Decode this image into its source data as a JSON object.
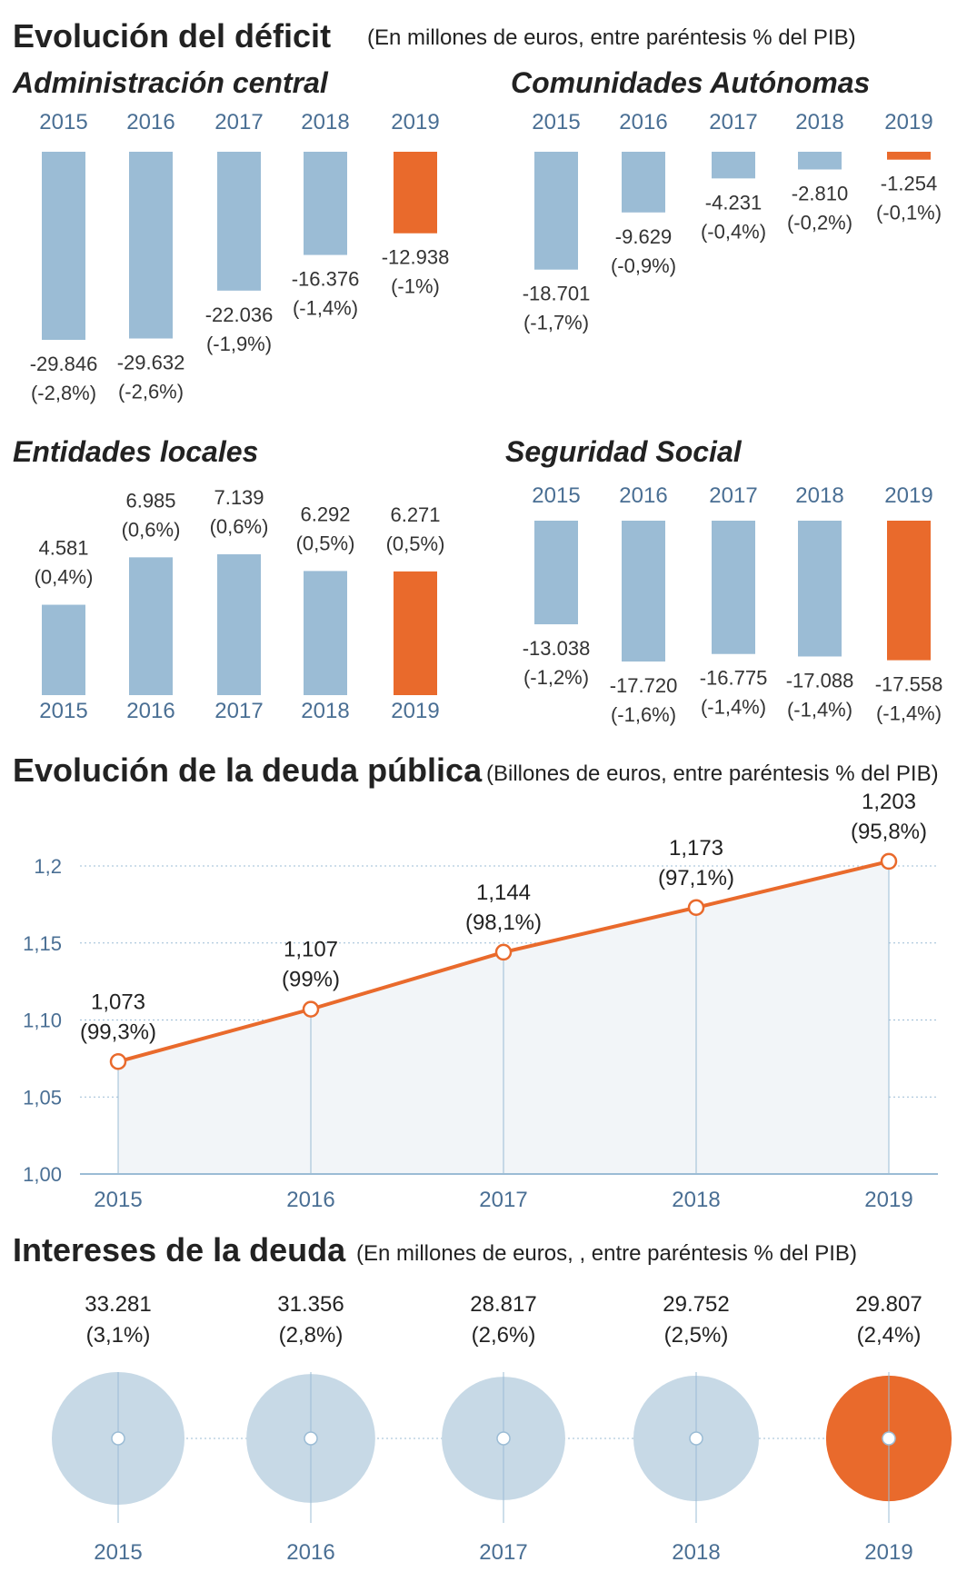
{
  "colors": {
    "bar": "#9bbcd5",
    "highlight": "#e96a2c",
    "circle": "#c7d9e6",
    "line": "#e96a2c",
    "area": "#f2f5f8",
    "axis": "#9bbcd5",
    "grid": "#9bbcd5",
    "title": "#222222",
    "year": "#4a6f94"
  },
  "deficit": {
    "title": "Evolución del déficit",
    "subtitle": "(En millones de euros, entre paréntesis % del PIB)"
  },
  "debt": {
    "title": "Evolución de la deuda pública",
    "subtitle": "(Billones de euros, entre paréntesis % del PIB)"
  },
  "interest": {
    "title": "Intereses de la deuda",
    "subtitle": "(En millones de euros, , entre paréntesis % del PIB)"
  },
  "chart_data": [
    {
      "type": "bar",
      "title": "Administración central",
      "categories": [
        "2015",
        "2016",
        "2017",
        "2018",
        "2019"
      ],
      "values": [
        -29846,
        -29632,
        -22036,
        -16376,
        -12938
      ],
      "value_labels": [
        "-29.846",
        "-29.632",
        "-22.036",
        "-16.376",
        "-12.938"
      ],
      "pct_labels": [
        "(-2,8%)",
        "(-2,6%)",
        "(-1,9%)",
        "(-1,4%)",
        "(-1%)"
      ],
      "highlight_index": 4
    },
    {
      "type": "bar",
      "title": "Comunidades Autónomas",
      "categories": [
        "2015",
        "2016",
        "2017",
        "2018",
        "2019"
      ],
      "values": [
        -18701,
        -9629,
        -4231,
        -2810,
        -1254
      ],
      "value_labels": [
        "-18.701",
        "-9.629",
        "-4.231",
        "-2.810",
        "-1.254"
      ],
      "pct_labels": [
        "(-1,7%)",
        "(-0,9%)",
        "(-0,4%)",
        "(-0,2%)",
        "(-0,1%)"
      ],
      "highlight_index": 4
    },
    {
      "type": "bar",
      "title": "Entidades locales",
      "categories": [
        "2015",
        "2016",
        "2017",
        "2018",
        "2019"
      ],
      "values": [
        4581,
        6985,
        7139,
        6292,
        6271
      ],
      "value_labels": [
        "4.581",
        "6.985",
        "7.139",
        "6.292",
        "6.271"
      ],
      "pct_labels": [
        "(0,4%)",
        "(0,6%)",
        "(0,6%)",
        "(0,5%)",
        "(0,5%)"
      ],
      "highlight_index": 4
    },
    {
      "type": "bar",
      "title": "Seguridad Social",
      "categories": [
        "2015",
        "2016",
        "2017",
        "2018",
        "2019"
      ],
      "values": [
        -13038,
        -17720,
        -16775,
        -17088,
        -17558
      ],
      "value_labels": [
        "-13.038",
        "-17.720",
        "-16.775",
        "-17.088",
        "-17.558"
      ],
      "pct_labels": [
        "(-1,2%)",
        "(-1,6%)",
        "(-1,4%)",
        "(-1,4%)",
        "(-1,4%)"
      ],
      "highlight_index": 4
    },
    {
      "type": "area",
      "title": "Evolución de la deuda pública",
      "x": [
        "2015",
        "2016",
        "2017",
        "2018",
        "2019"
      ],
      "values": [
        1.073,
        1.107,
        1.144,
        1.173,
        1.203
      ],
      "value_labels": [
        "1,073",
        "1,107",
        "1,144",
        "1,173",
        "1,203"
      ],
      "pct_labels": [
        "(99,3%)",
        "(99%)",
        "(98,1%)",
        "(97,1%)",
        "(95,8%)"
      ],
      "ylim": [
        1.0,
        1.2
      ],
      "yticks": [
        1.0,
        1.05,
        1.1,
        1.15,
        1.2
      ],
      "ytick_labels": [
        "1,00",
        "1,05",
        "1,10",
        "1,15",
        "1,2"
      ],
      "grid": true
    },
    {
      "type": "bubble",
      "title": "Intereses de la deuda",
      "categories": [
        "2015",
        "2016",
        "2017",
        "2018",
        "2019"
      ],
      "values": [
        33281,
        31356,
        28817,
        29752,
        29807
      ],
      "value_labels": [
        "33.281",
        "31.356",
        "28.817",
        "29.752",
        "29.807"
      ],
      "pct_labels": [
        "(3,1%)",
        "(2,8%)",
        "(2,6%)",
        "(2,5%)",
        "(2,4%)"
      ],
      "highlight_index": 4
    }
  ]
}
